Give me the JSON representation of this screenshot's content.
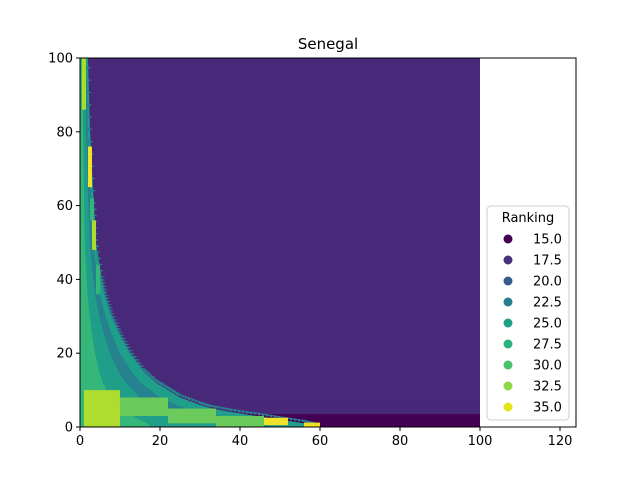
{
  "chart_data": {
    "type": "heatmap",
    "title": "Senegal",
    "xlabel": "",
    "ylabel": "",
    "xlim": [
      0,
      124
    ],
    "ylim": [
      0,
      100
    ],
    "x_ticks": [
      0,
      20,
      40,
      60,
      80,
      100,
      120
    ],
    "y_ticks": [
      0,
      20,
      40,
      60,
      80,
      100
    ],
    "grid": false,
    "data_extent": {
      "x": [
        0,
        100
      ],
      "y": [
        0,
        100
      ]
    },
    "background_value": 17.2,
    "colormap": "viridis",
    "color_range": [
      14.4,
      35.5
    ],
    "palette": [
      "#440154",
      "#482878",
      "#3e4989",
      "#31688e",
      "#26828e",
      "#1f9e89",
      "#35b779",
      "#6ece58",
      "#b5de2b",
      "#fde725"
    ],
    "legend": {
      "title": "Ranking",
      "position": "lower right",
      "entries": [
        {
          "label": "15.0",
          "color": "#440154"
        },
        {
          "label": "17.5",
          "color": "#46337e"
        },
        {
          "label": "20.0",
          "color": "#365c8d"
        },
        {
          "label": "22.5",
          "color": "#277f8e"
        },
        {
          "label": "25.0",
          "color": "#1fa187"
        },
        {
          "label": "27.5",
          "color": "#2db27d"
        },
        {
          "label": "30.0",
          "color": "#4ac16d"
        },
        {
          "label": "32.5",
          "color": "#8fd744"
        },
        {
          "label": "35.0",
          "color": "#e2e418"
        }
      ]
    },
    "bands": [
      {
        "y_range": [
          0,
          1.5
        ],
        "value": 14.4
      },
      {
        "y_range": [
          1.5,
          3.5
        ],
        "value": 15.3
      },
      {
        "y_range": [
          3.5,
          6.5
        ],
        "value": 16.2
      },
      {
        "y_range": [
          6.5,
          10.5
        ],
        "value": 16.7
      }
    ],
    "boundary_curve": [
      {
        "y": 100,
        "x": 2.0
      },
      {
        "y": 80,
        "x": 2.5
      },
      {
        "y": 60,
        "x": 3.5
      },
      {
        "y": 50,
        "x": 4.0
      },
      {
        "y": 40,
        "x": 5.5
      },
      {
        "y": 35,
        "x": 6.5
      },
      {
        "y": 30,
        "x": 8.0
      },
      {
        "y": 25,
        "x": 10.0
      },
      {
        "y": 20,
        "x": 12.5
      },
      {
        "y": 15,
        "x": 16.0
      },
      {
        "y": 12,
        "x": 19.0
      },
      {
        "y": 10,
        "x": 22.0
      },
      {
        "y": 8,
        "x": 25.0
      },
      {
        "y": 6,
        "x": 30.0
      },
      {
        "y": 5,
        "x": 33.0
      },
      {
        "y": 4,
        "x": 38.0
      },
      {
        "y": 3,
        "x": 44.0
      },
      {
        "y": 2,
        "x": 50.0
      },
      {
        "y": 1,
        "x": 56.0
      },
      {
        "y": 0,
        "x": 60.0
      }
    ],
    "highlights": [
      {
        "x": [
          0.5,
          1.5
        ],
        "y": [
          86,
          100
        ],
        "value": 32
      },
      {
        "x": [
          2.0,
          3.0
        ],
        "y": [
          65,
          76
        ],
        "value": 35
      },
      {
        "x": [
          3.0,
          4.0
        ],
        "y": [
          48,
          56
        ],
        "value": 32
      },
      {
        "x": [
          2.5,
          3.5
        ],
        "y": [
          56,
          62
        ],
        "value": 29
      },
      {
        "x": [
          4.0,
          5.0
        ],
        "y": [
          36,
          44
        ],
        "value": 28
      },
      {
        "x": [
          1.0,
          10.0
        ],
        "y": [
          0,
          10
        ],
        "value": 33
      },
      {
        "x": [
          10.0,
          22.0
        ],
        "y": [
          3,
          8
        ],
        "value": 31
      },
      {
        "x": [
          22.0,
          34.0
        ],
        "y": [
          1,
          5
        ],
        "value": 30
      },
      {
        "x": [
          34.0,
          46.0
        ],
        "y": [
          0,
          3
        ],
        "value": 31
      },
      {
        "x": [
          46.0,
          52.0
        ],
        "y": [
          0.5,
          2.5
        ],
        "value": 35
      },
      {
        "x": [
          56.0,
          60.0
        ],
        "y": [
          0,
          1.2
        ],
        "value": 35
      }
    ]
  }
}
